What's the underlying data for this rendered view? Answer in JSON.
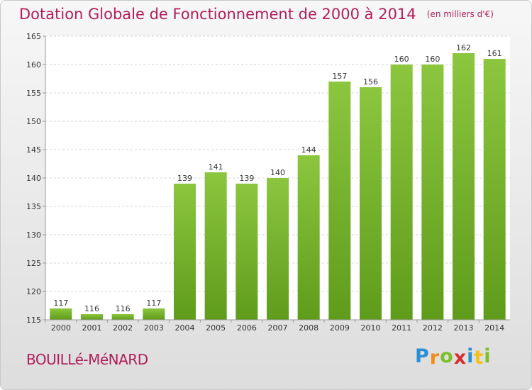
{
  "header": {
    "title": "Dotation Globale de Fonctionnement de 2000 à 2014",
    "unit_note": "(en milliers d'€)"
  },
  "footer": {
    "commune": "BOUILLé-MéNARD",
    "logo_letters": [
      "P",
      "r",
      "o",
      "x",
      "i",
      "t",
      "i"
    ],
    "logo_colors": [
      "#2c8fd6",
      "#f28c1a",
      "#7cbf2a",
      "#d62c2c",
      "#2c8fd6",
      "#f2c21a",
      "#7cbf2a"
    ]
  },
  "chart_data": {
    "type": "bar",
    "title": "Dotation Globale de Fonctionnement de 2000 à 2014",
    "xlabel": "",
    "ylabel": "",
    "categories": [
      "2000",
      "2001",
      "2002",
      "2003",
      "2004",
      "2005",
      "2006",
      "2007",
      "2008",
      "2009",
      "2010",
      "2011",
      "2012",
      "2013",
      "2014"
    ],
    "values": [
      117,
      116,
      116,
      117,
      139,
      141,
      139,
      140,
      144,
      157,
      156,
      160,
      160,
      162,
      161
    ],
    "ylim": [
      115,
      165
    ],
    "yticks": [
      115,
      120,
      125,
      130,
      135,
      140,
      145,
      150,
      155,
      160,
      165
    ],
    "grid": true,
    "bar_color": "#8cc63f",
    "bar_color_dark": "#5f9c1b"
  }
}
